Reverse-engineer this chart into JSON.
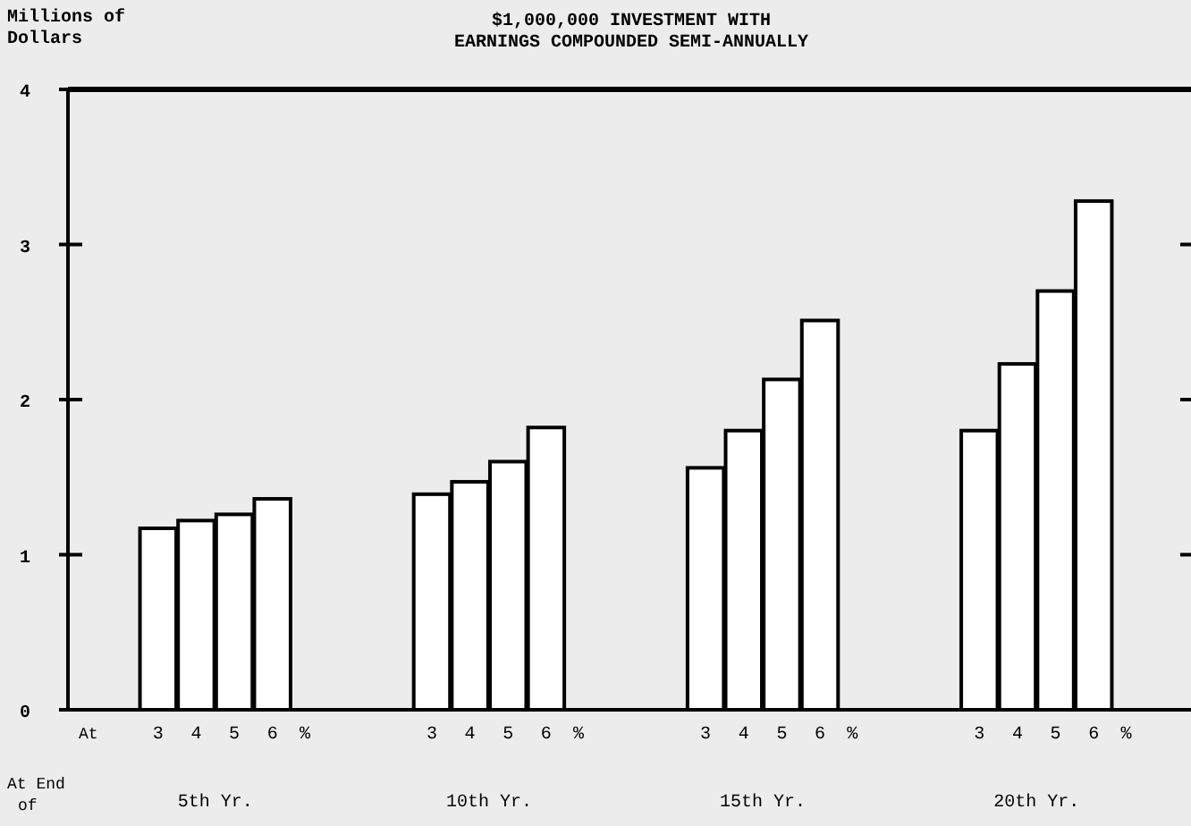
{
  "chart_data": {
    "type": "bar",
    "title": "$1,000,000 INVESTMENT WITH",
    "subtitle": "EARNINGS COMPOUNDED SEMI-ANNUALLY",
    "ylabel": "Millions of Dollars",
    "categories": [
      "5th Yr.",
      "10th Yr.",
      "15th Yr.",
      "20th Yr."
    ],
    "series": [
      {
        "name": "3",
        "color": "#ffffff",
        "values": [
          1.17,
          1.39,
          1.56,
          1.8
        ]
      },
      {
        "name": "4",
        "color": "#ffffff",
        "values": [
          1.22,
          1.47,
          1.8,
          2.23
        ]
      },
      {
        "name": "5",
        "color": "#ffffff",
        "values": [
          1.26,
          1.6,
          2.13,
          2.7
        ]
      },
      {
        "name": "6",
        "color": "#ffffff",
        "values": [
          1.36,
          1.82,
          2.51,
          3.28
        ]
      }
    ],
    "ylim": [
      0,
      4
    ],
    "yticks": [
      0,
      1,
      2,
      3,
      4
    ],
    "grid": false,
    "annotations": [
      "At",
      "%",
      "At End of"
    ]
  }
}
